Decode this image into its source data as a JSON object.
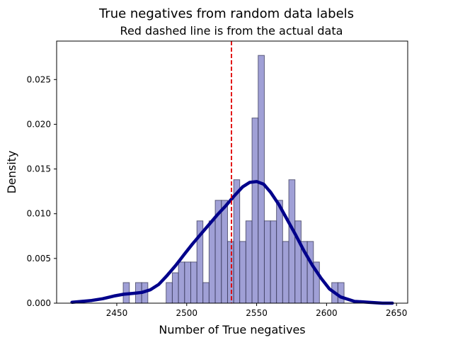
{
  "chart_data": {
    "type": "bar",
    "title": "True negatives from random data labels",
    "subtitle": "Red dashed line is from the actual data",
    "xlabel": "Number of True negatives",
    "ylabel": "Density",
    "xlim": [
      2407,
      2658
    ],
    "ylim": [
      0,
      0.0293
    ],
    "xticks": [
      2450,
      2500,
      2550,
      2600,
      2650
    ],
    "yticks": [
      0.0,
      0.005,
      0.01,
      0.015,
      0.02,
      0.025
    ],
    "xtick_labels": [
      "2450",
      "2500",
      "2550",
      "2600",
      "2650"
    ],
    "ytick_labels": [
      "0.000",
      "0.005",
      "0.010",
      "0.015",
      "0.020",
      "0.025"
    ],
    "reference_line_x": 2532,
    "bins": [
      {
        "x0": 2454.6,
        "x1": 2459.0,
        "y": 0.0023
      },
      {
        "x0": 2463.4,
        "x1": 2467.8,
        "y": 0.0023
      },
      {
        "x0": 2467.8,
        "x1": 2472.2,
        "y": 0.0023
      },
      {
        "x0": 2485.3,
        "x1": 2489.7,
        "y": 0.0023
      },
      {
        "x0": 2489.7,
        "x1": 2494.1,
        "y": 0.0034
      },
      {
        "x0": 2494.1,
        "x1": 2498.5,
        "y": 0.0046
      },
      {
        "x0": 2498.5,
        "x1": 2502.9,
        "y": 0.0046
      },
      {
        "x0": 2502.9,
        "x1": 2507.3,
        "y": 0.0046
      },
      {
        "x0": 2507.3,
        "x1": 2511.6,
        "y": 0.0092
      },
      {
        "x0": 2511.6,
        "x1": 2516.0,
        "y": 0.0023
      },
      {
        "x0": 2516.0,
        "x1": 2520.4,
        "y": 0.0092
      },
      {
        "x0": 2520.4,
        "x1": 2524.8,
        "y": 0.0115
      },
      {
        "x0": 2524.8,
        "x1": 2529.2,
        "y": 0.0115
      },
      {
        "x0": 2529.2,
        "x1": 2533.6,
        "y": 0.0069
      },
      {
        "x0": 2533.6,
        "x1": 2537.9,
        "y": 0.0138
      },
      {
        "x0": 2537.9,
        "x1": 2542.3,
        "y": 0.0069
      },
      {
        "x0": 2542.3,
        "x1": 2546.7,
        "y": 0.0092
      },
      {
        "x0": 2546.7,
        "x1": 2551.1,
        "y": 0.0207
      },
      {
        "x0": 2551.1,
        "x1": 2555.5,
        "y": 0.0277
      },
      {
        "x0": 2555.5,
        "x1": 2559.9,
        "y": 0.0092
      },
      {
        "x0": 2559.9,
        "x1": 2564.2,
        "y": 0.0092
      },
      {
        "x0": 2564.2,
        "x1": 2568.6,
        "y": 0.0115
      },
      {
        "x0": 2568.6,
        "x1": 2573.0,
        "y": 0.0069
      },
      {
        "x0": 2573.0,
        "x1": 2577.4,
        "y": 0.0138
      },
      {
        "x0": 2577.4,
        "x1": 2581.8,
        "y": 0.0092
      },
      {
        "x0": 2581.8,
        "x1": 2586.2,
        "y": 0.0069
      },
      {
        "x0": 2586.2,
        "x1": 2590.6,
        "y": 0.0069
      },
      {
        "x0": 2590.6,
        "x1": 2594.9,
        "y": 0.0046
      },
      {
        "x0": 2603.7,
        "x1": 2608.1,
        "y": 0.0023
      },
      {
        "x0": 2608.1,
        "x1": 2612.5,
        "y": 0.0023
      }
    ],
    "kde_curve": {
      "x": [
        2418,
        2425,
        2432,
        2440,
        2448,
        2455,
        2462,
        2468,
        2474,
        2480,
        2486,
        2492,
        2498,
        2504,
        2510,
        2516,
        2522,
        2528,
        2534,
        2540,
        2545,
        2550,
        2555,
        2560,
        2566,
        2572,
        2578,
        2584,
        2590,
        2596,
        2602,
        2610,
        2620,
        2630,
        2640,
        2647
      ],
      "y": [
        0.0001,
        0.0002,
        0.0003,
        0.0005,
        0.0008,
        0.001,
        0.0011,
        0.0012,
        0.0015,
        0.0021,
        0.0031,
        0.0042,
        0.0054,
        0.0066,
        0.0077,
        0.0088,
        0.0099,
        0.0109,
        0.012,
        0.013,
        0.0135,
        0.0136,
        0.0133,
        0.0124,
        0.011,
        0.0093,
        0.0076,
        0.0058,
        0.0042,
        0.0028,
        0.0016,
        0.0007,
        0.0002,
        0.0001,
        0.0,
        0.0
      ]
    },
    "colors": {
      "bars": "#8080c8",
      "kde": "#00008b",
      "reference_line": "#e00000"
    },
    "grid": false
  }
}
